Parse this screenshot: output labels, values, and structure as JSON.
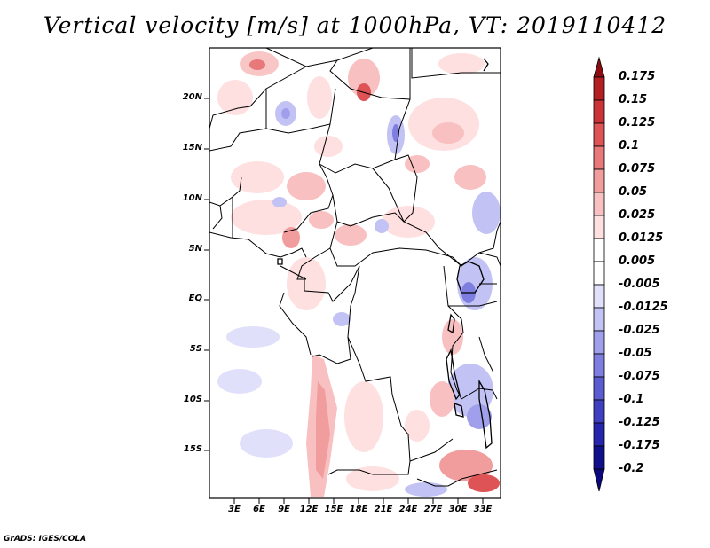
{
  "map": {
    "title": "Vertical velocity [m/s] at 1000hPa, VT: 2019110412",
    "footer": "GrADS: IGES/COLA",
    "lat_labels": [
      "20N",
      "15N",
      "10N",
      "5N",
      "EQ",
      "5S",
      "10S",
      "15S"
    ],
    "lon_labels": [
      "3E",
      "6E",
      "9E",
      "12E",
      "15E",
      "18E",
      "21E",
      "24E",
      "27E",
      "30E",
      "33E"
    ],
    "colorbar": {
      "levels": [
        "0.175",
        "0.15",
        "0.125",
        "0.1",
        "0.075",
        "0.05",
        "0.025",
        "0.0125",
        "0.005",
        "-0.005",
        "-0.0125",
        "-0.025",
        "-0.05",
        "-0.075",
        "-0.1",
        "-0.125",
        "-0.175",
        "-0.2"
      ],
      "colors": [
        "#8b0d12",
        "#b41f24",
        "#cc3338",
        "#dd5356",
        "#e8797a",
        "#f19d9d",
        "#f8c0c0",
        "#fde0df",
        "#ffffff",
        "#ffffff",
        "#e0e0fb",
        "#c2c2f5",
        "#9f9fec",
        "#7e7ee0",
        "#5c5cd2",
        "#3f3fc2",
        "#2525ad",
        "#10108c",
        "#0c0880"
      ]
    }
  }
}
